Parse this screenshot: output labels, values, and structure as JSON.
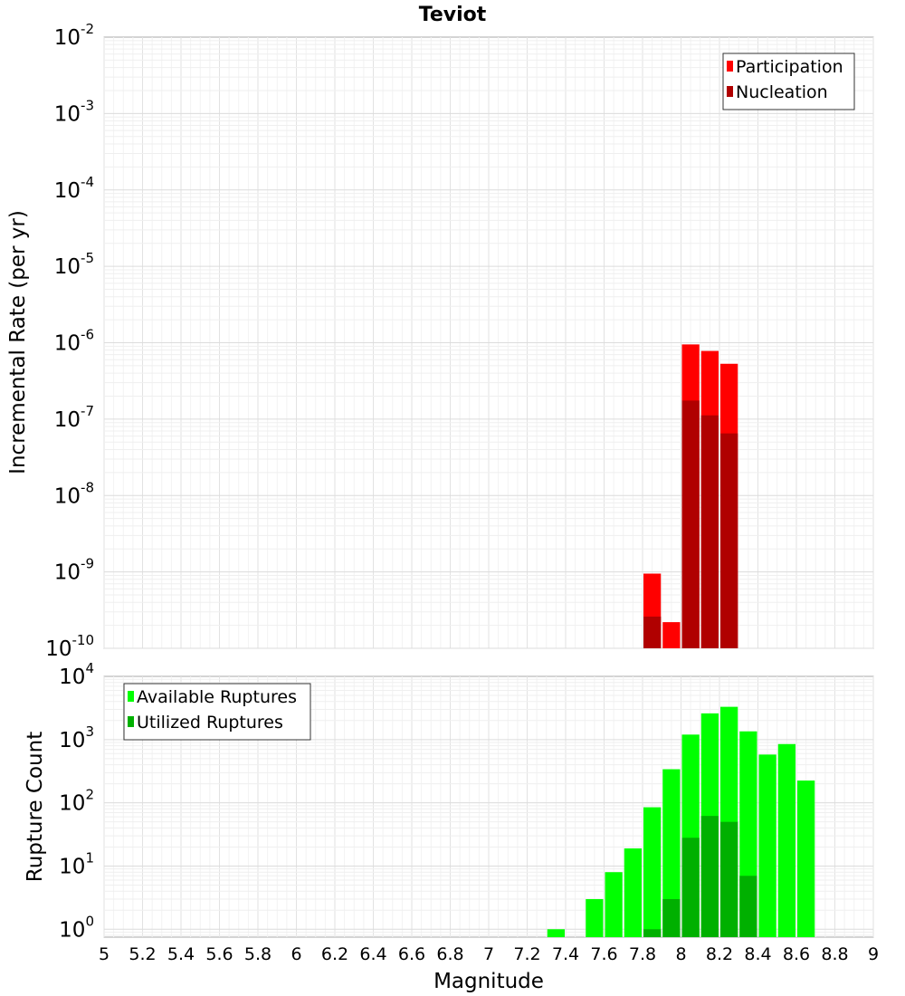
{
  "chart_data": [
    {
      "type": "bar",
      "title": "Teviot",
      "xlabel": "",
      "ylabel": "Incremental Rate (per yr)",
      "yscale": "log",
      "ylim": [
        1e-10,
        0.01
      ],
      "xlim": [
        5,
        9
      ],
      "bin_width": 0.1,
      "grid": true,
      "legend_position": "top-right",
      "y_ticks": [
        {
          "base": "10",
          "exp": "-2",
          "value": 0.01
        },
        {
          "base": "10",
          "exp": "-3",
          "value": 0.001
        },
        {
          "base": "10",
          "exp": "-4",
          "value": 0.0001
        },
        {
          "base": "10",
          "exp": "-5",
          "value": 1e-05
        },
        {
          "base": "10",
          "exp": "-6",
          "value": 1e-06
        },
        {
          "base": "10",
          "exp": "-7",
          "value": 1e-07
        },
        {
          "base": "10",
          "exp": "-8",
          "value": 1e-08
        },
        {
          "base": "10",
          "exp": "-9",
          "value": 1e-09
        },
        {
          "base": "10",
          "exp": "-10",
          "value": 1e-10
        }
      ],
      "series": [
        {
          "name": "Participation",
          "color": "#ff0000",
          "points": [
            {
              "x": 7.85,
              "y": 9.5e-10
            },
            {
              "x": 7.95,
              "y": 2.2e-10
            },
            {
              "x": 8.05,
              "y": 9.5e-07
            },
            {
              "x": 8.15,
              "y": 7.8e-07
            },
            {
              "x": 8.25,
              "y": 5.3e-07
            }
          ]
        },
        {
          "name": "Nucleation",
          "color": "#b00000",
          "points": [
            {
              "x": 7.85,
              "y": 2.6e-10
            },
            {
              "x": 8.05,
              "y": 1.75e-07
            },
            {
              "x": 8.15,
              "y": 1.12e-07
            },
            {
              "x": 8.25,
              "y": 6.5e-08
            }
          ]
        }
      ]
    },
    {
      "type": "bar",
      "title": "",
      "xlabel": "Magnitude",
      "ylabel": "Rupture Count",
      "yscale": "log",
      "ylim": [
        0.75,
        10000
      ],
      "xlim": [
        5,
        9
      ],
      "bin_width": 0.1,
      "grid": true,
      "legend_position": "top-left",
      "x_tick_labels": [
        "5",
        "5.2",
        "5.4",
        "5.6",
        "5.8",
        "6",
        "6.2",
        "6.4",
        "6.6",
        "6.8",
        "7",
        "7.2",
        "7.4",
        "7.6",
        "7.8",
        "8",
        "8.2",
        "8.4",
        "8.6",
        "8.8",
        "9"
      ],
      "y_ticks": [
        {
          "base": "10",
          "exp": "4",
          "value": 10000
        },
        {
          "base": "10",
          "exp": "3",
          "value": 1000
        },
        {
          "base": "10",
          "exp": "2",
          "value": 100
        },
        {
          "base": "10",
          "exp": "1",
          "value": 10
        },
        {
          "base": "10",
          "exp": "0",
          "value": 1
        }
      ],
      "series": [
        {
          "name": "Available Ruptures",
          "color": "#00ff00",
          "points": [
            {
              "x": 7.35,
              "y": 1
            },
            {
              "x": 7.55,
              "y": 3
            },
            {
              "x": 7.65,
              "y": 8
            },
            {
              "x": 7.75,
              "y": 19
            },
            {
              "x": 7.85,
              "y": 85
            },
            {
              "x": 7.95,
              "y": 340
            },
            {
              "x": 8.05,
              "y": 1200
            },
            {
              "x": 8.15,
              "y": 2600
            },
            {
              "x": 8.25,
              "y": 3300
            },
            {
              "x": 8.35,
              "y": 1350
            },
            {
              "x": 8.45,
              "y": 580
            },
            {
              "x": 8.55,
              "y": 850
            },
            {
              "x": 8.65,
              "y": 225
            }
          ]
        },
        {
          "name": "Utilized Ruptures",
          "color": "#00b000",
          "points": [
            {
              "x": 7.85,
              "y": 1
            },
            {
              "x": 7.95,
              "y": 3
            },
            {
              "x": 8.05,
              "y": 28
            },
            {
              "x": 8.15,
              "y": 62
            },
            {
              "x": 8.25,
              "y": 50
            },
            {
              "x": 8.35,
              "y": 7
            }
          ]
        }
      ]
    }
  ]
}
